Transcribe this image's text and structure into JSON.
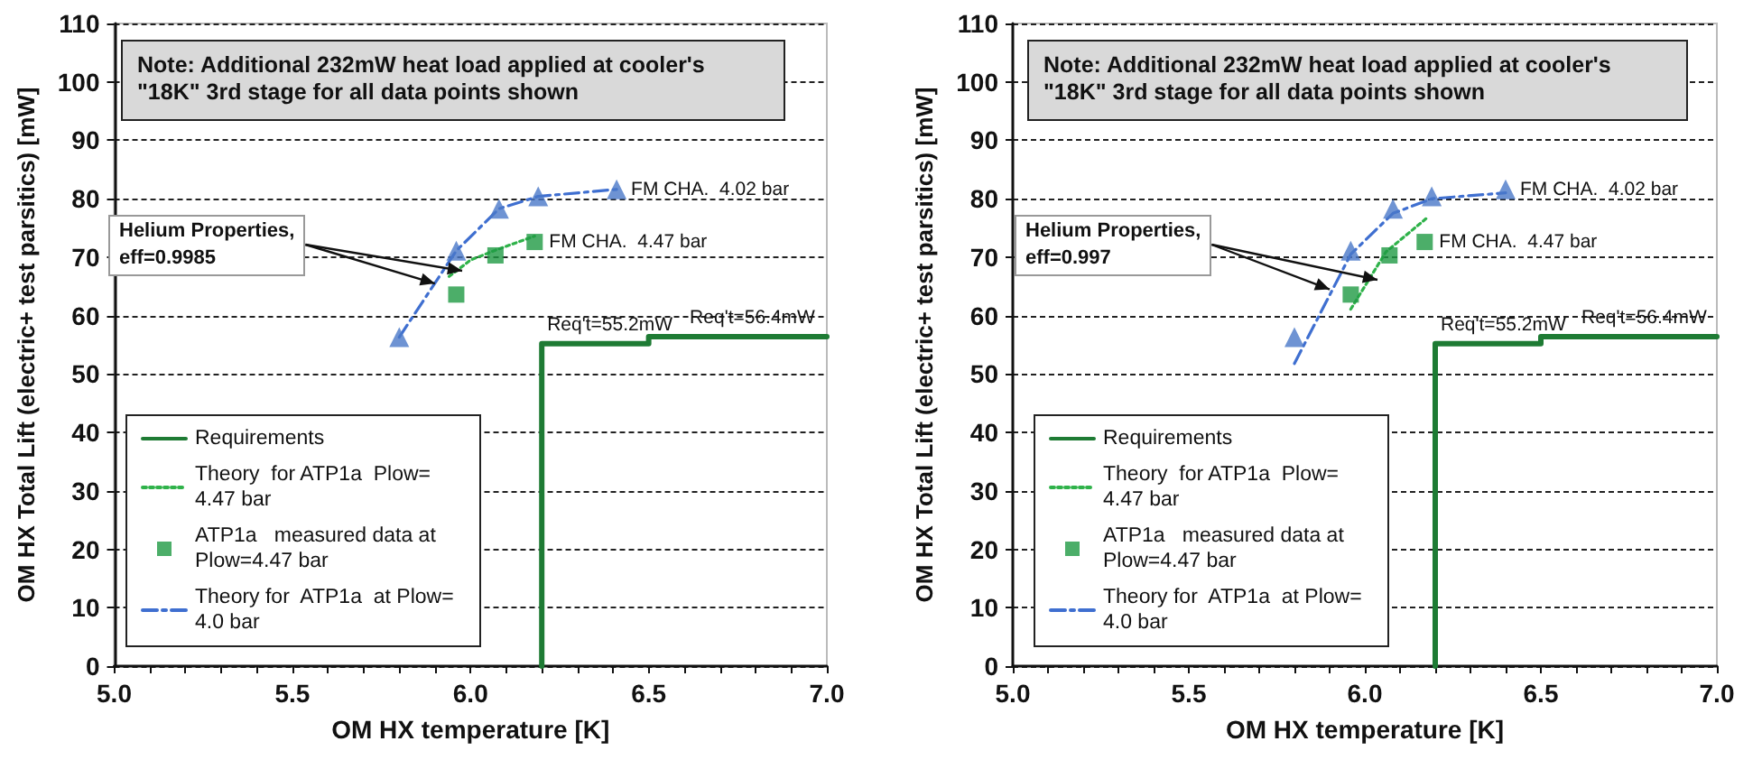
{
  "chart_data": [
    {
      "type": "line",
      "xlabel": "OM HX temperature [K]",
      "ylabel": "OM HX Total Lift (electric+ test parsitics) [mW]",
      "xlim": [
        5,
        7
      ],
      "xticks": [
        {
          "value": 5,
          "label": "5.0"
        },
        {
          "value": 5.1,
          "label": null
        },
        {
          "value": 5.2,
          "label": null
        },
        {
          "value": 5.3,
          "label": null
        },
        {
          "value": 5.4,
          "label": null
        },
        {
          "value": 5.5,
          "label": "5.5"
        },
        {
          "value": 5.6,
          "label": null
        },
        {
          "value": 5.7,
          "label": null
        },
        {
          "value": 5.8,
          "label": null
        },
        {
          "value": 5.9,
          "label": null
        },
        {
          "value": 6,
          "label": "6.0"
        },
        {
          "value": 6.1,
          "label": null
        },
        {
          "value": 6.2,
          "label": null
        },
        {
          "value": 6.3,
          "label": null
        },
        {
          "value": 6.4,
          "label": null
        },
        {
          "value": 6.5,
          "label": "6.5"
        },
        {
          "value": 6.6,
          "label": null
        },
        {
          "value": 6.7,
          "label": null
        },
        {
          "value": 6.8,
          "label": null
        },
        {
          "value": 6.9,
          "label": null
        },
        {
          "value": 7,
          "label": "7.0"
        }
      ],
      "ylim": [
        0,
        110
      ],
      "yticks": [
        0,
        10,
        20,
        30,
        40,
        50,
        60,
        70,
        80,
        90,
        100,
        110
      ],
      "grid": "y",
      "legend": "bottom left",
      "series": [
        {
          "name": "Requirements",
          "type": "line",
          "color": "#1e7b34",
          "line_style": "solid",
          "marker": "none",
          "x": [
            6.2,
            6.2,
            6.5,
            6.5,
            7.0
          ],
          "values": [
            0,
            55.2,
            55.2,
            56.4,
            56.4
          ]
        },
        {
          "name": "Theory  for ATP1a  Plow= 4.47 bar",
          "color": "#2fb24a",
          "line_style": "dotted",
          "marker": "none",
          "x": [
            5.94,
            6.0,
            6.07,
            6.18
          ],
          "values": [
            66.7,
            69.5,
            71.2,
            73.6
          ]
        },
        {
          "name": "ATP1a   measured data at Plow=4.47 bar",
          "type": "scatter",
          "color": "#1f9a43",
          "marker": "square",
          "x": [
            5.96,
            6.07,
            6.18
          ],
          "values": [
            63.6,
            70.3,
            72.6
          ]
        },
        {
          "name": "Theory for  ATP1a  at Plow= 4.0 bar",
          "type": "line",
          "color": "#3f6fd0",
          "line_style": "dashed",
          "marker": "none",
          "x": [
            5.8,
            5.96,
            6.08,
            6.19,
            6.41
          ],
          "values": [
            56.3,
            71.1,
            78.3,
            80.4,
            81.6
          ]
        },
        {
          "type": "scatter",
          "color": "#4a78c8",
          "marker": "triangle",
          "x": [
            5.8,
            5.96,
            6.08,
            6.19,
            6.41
          ],
          "values": [
            56.3,
            71.1,
            78.3,
            80.4,
            81.6
          ]
        }
      ],
      "annotations": [
        "Note: Additional 232mW heat load applied at cooler's \"18K\" 3rd stage for all data points shown",
        {
          "text": "Helium Properties, eff=0.9985",
          "x": 5.9,
          "y": 65.5
        },
        {
          "text": "Req't=55.2mW",
          "x": 6.2,
          "y": 55.2
        },
        {
          "text": "Req't=56.4mW",
          "x": 6.6,
          "y": 56.4
        },
        {
          "text": "FM CHA.  4.02 bar",
          "x": 6.41,
          "y": 81.6
        },
        {
          "text": "FM CHA.  4.47 bar",
          "x": 6.18,
          "y": 72.6
        }
      ]
    },
    {
      "type": "line",
      "xlabel": "OM HX temperature [K]",
      "ylabel": "OM HX Total Lift (electric+ test parsitics) [mW]",
      "xlim": [
        5,
        7
      ],
      "xticks": [
        {
          "value": 5,
          "label": "5.0"
        },
        {
          "value": 5.1,
          "label": null
        },
        {
          "value": 5.2,
          "label": null
        },
        {
          "value": 5.3,
          "label": null
        },
        {
          "value": 5.4,
          "label": null
        },
        {
          "value": 5.5,
          "label": "5.5"
        },
        {
          "value": 5.6,
          "label": null
        },
        {
          "value": 5.7,
          "label": null
        },
        {
          "value": 5.8,
          "label": null
        },
        {
          "value": 5.9,
          "label": null
        },
        {
          "value": 6,
          "label": "6.0"
        },
        {
          "value": 6.1,
          "label": null
        },
        {
          "value": 6.2,
          "label": null
        },
        {
          "value": 6.3,
          "label": null
        },
        {
          "value": 6.4,
          "label": null
        },
        {
          "value": 6.5,
          "label": "6.5"
        },
        {
          "value": 6.6,
          "label": null
        },
        {
          "value": 6.7,
          "label": null
        },
        {
          "value": 6.8,
          "label": null
        },
        {
          "value": 6.9,
          "label": null
        },
        {
          "value": 7,
          "label": "7.0"
        }
      ],
      "ylim": [
        0,
        110
      ],
      "yticks": [
        0,
        10,
        20,
        30,
        40,
        50,
        60,
        70,
        80,
        90,
        100,
        110
      ],
      "grid": "y",
      "legend": "bottom left",
      "series": [
        {
          "name": "Requirements",
          "type": "line",
          "color": "#1e7b34",
          "line_style": "solid",
          "marker": "none",
          "x": [
            6.2,
            6.2,
            6.5,
            6.5,
            7.0
          ],
          "values": [
            0,
            55.2,
            55.2,
            56.4,
            56.4
          ]
        },
        {
          "name": "Theory  for ATP1a  Plow= 4.47 bar",
          "color": "#2fb24a",
          "line_style": "dotted",
          "marker": "none",
          "x": [
            5.96,
            6.06,
            6.18
          ],
          "values": [
            61.1,
            70.9,
            76.9
          ]
        },
        {
          "name": "ATP1a   measured data at Plow=4.47 bar",
          "type": "scatter",
          "color": "#1f9a43",
          "marker": "square",
          "x": [
            5.96,
            6.07,
            6.17
          ],
          "values": [
            63.6,
            70.3,
            72.6
          ]
        },
        {
          "name": "Theory for  ATP1a  at Plow= 4.0 bar",
          "type": "line",
          "color": "#3f6fd0",
          "line_style": "dashed",
          "marker": "none",
          "x": [
            5.8,
            5.96,
            6.08,
            6.19,
            6.4
          ],
          "values": [
            51.8,
            70.5,
            77.5,
            80.0,
            81.0
          ]
        },
        {
          "type": "scatter",
          "color": "#4a78c8",
          "marker": "triangle",
          "x": [
            5.8,
            5.96,
            6.08,
            6.19,
            6.4
          ],
          "values": [
            56.3,
            71.1,
            78.3,
            80.4,
            81.6
          ]
        }
      ],
      "annotations": [
        "Note: Additional 232mW heat load applied at cooler's \"18K\" 3rd stage for all data points shown",
        {
          "text": "Helium Properties, eff=0.997",
          "x": 5.9,
          "y": 64.5
        },
        {
          "text": "Req't=55.2mW",
          "x": 6.2,
          "y": 55.2
        },
        {
          "text": "Req't=56.4mW",
          "x": 6.6,
          "y": 56.4
        },
        {
          "text": "FM CHA.  4.02 bar",
          "x": 6.4,
          "y": 81.6
        },
        {
          "text": "FM CHA.  4.47 bar",
          "x": 6.17,
          "y": 72.6
        }
      ]
    }
  ]
}
